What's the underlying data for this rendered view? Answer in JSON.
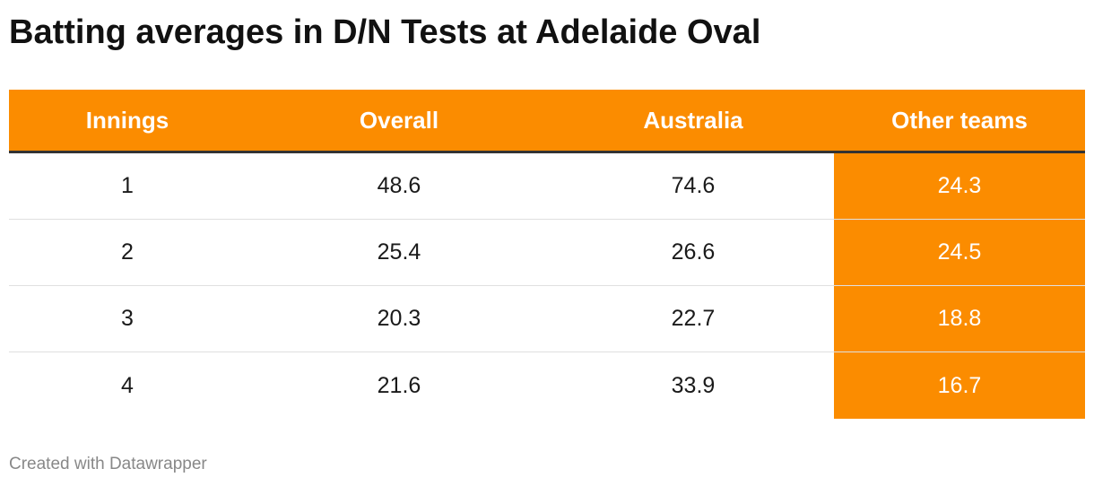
{
  "title": "Batting averages in D/N Tests at Adelaide Oval",
  "footer": "Created with Datawrapper",
  "colors": {
    "header_background": "#fb8c00",
    "highlight_column": "#fb8c00",
    "header_text": "#ffffff",
    "row_divider": "#e0e0e0"
  },
  "chart_data": {
    "type": "table",
    "title": "Batting averages in D/N Tests at Adelaide Oval",
    "columns": [
      "Innings",
      "Overall",
      "Australia",
      "Other teams"
    ],
    "highlighted_column": "Other teams",
    "rows": [
      [
        "1",
        "48.6",
        "74.6",
        "24.3"
      ],
      [
        "2",
        "25.4",
        "26.6",
        "24.5"
      ],
      [
        "3",
        "20.3",
        "22.7",
        "18.8"
      ],
      [
        "4",
        "21.6",
        "33.9",
        "16.7"
      ]
    ]
  }
}
